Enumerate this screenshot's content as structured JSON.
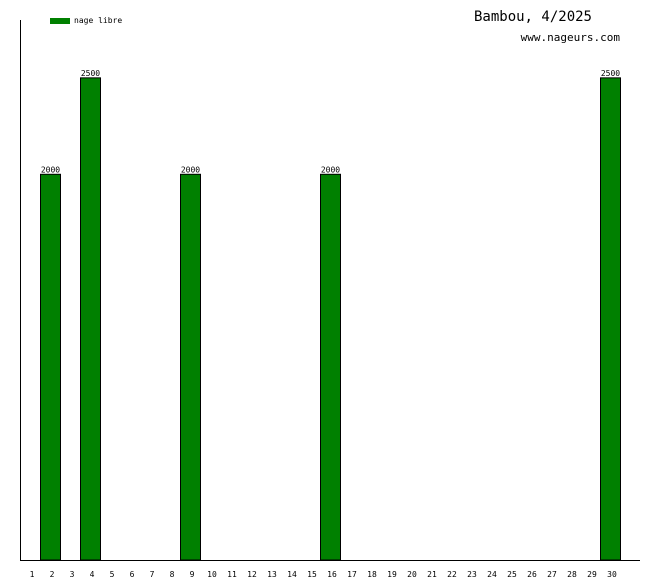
{
  "chart_data": {
    "type": "bar",
    "title": "Bambou, 4/2025",
    "subtitle": "www.nageurs.com",
    "xlabel": "",
    "ylabel": "",
    "ylim": [
      0,
      2800
    ],
    "grid": false,
    "legend_position": "top-left",
    "categories": [
      "1",
      "2",
      "3",
      "4",
      "5",
      "6",
      "7",
      "8",
      "9",
      "10",
      "11",
      "12",
      "13",
      "14",
      "15",
      "16",
      "17",
      "18",
      "19",
      "20",
      "21",
      "22",
      "23",
      "24",
      "25",
      "26",
      "27",
      "28",
      "29",
      "30"
    ],
    "series": [
      {
        "name": "nage libre",
        "color": "#008000",
        "values": [
          0,
          2000,
          0,
          2500,
          0,
          0,
          0,
          0,
          2000,
          0,
          0,
          0,
          0,
          0,
          0,
          2000,
          0,
          0,
          0,
          0,
          0,
          0,
          0,
          0,
          0,
          0,
          0,
          0,
          0,
          2500
        ]
      }
    ]
  }
}
